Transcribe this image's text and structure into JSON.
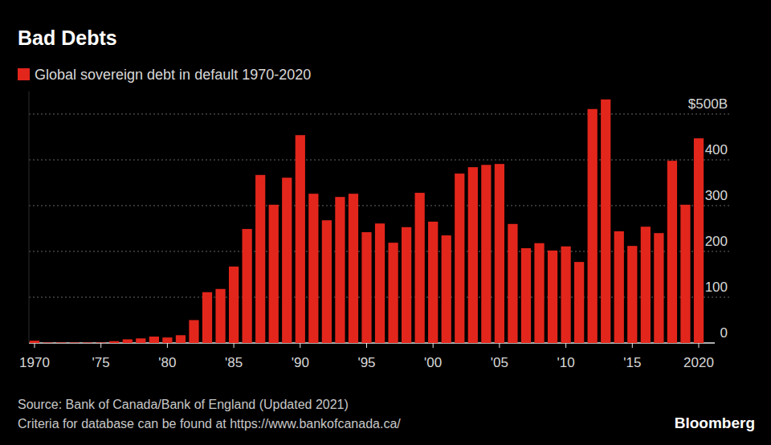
{
  "chart_data": {
    "type": "bar",
    "title": "Bad Debts",
    "categories": [
      "1970",
      null,
      null,
      null,
      null,
      "'75",
      null,
      null,
      null,
      null,
      "'80",
      null,
      null,
      null,
      null,
      "'85",
      null,
      null,
      null,
      null,
      "'90",
      null,
      null,
      null,
      null,
      "'95",
      null,
      null,
      null,
      null,
      "'00",
      null,
      null,
      null,
      null,
      "'05",
      null,
      null,
      null,
      null,
      "'10",
      null,
      null,
      null,
      null,
      "'15",
      null,
      null,
      null,
      null,
      "2020"
    ],
    "series": [
      {
        "name": "Global sovereign debt in default 1970-2020",
        "color": "#e3261c",
        "values": [
          5,
          1,
          1,
          1,
          1,
          1,
          4,
          8,
          10,
          14,
          12,
          17,
          50,
          111,
          118,
          167,
          249,
          367,
          302,
          361,
          454,
          326,
          268,
          319,
          326,
          242,
          261,
          219,
          253,
          328,
          265,
          235,
          370,
          384,
          389,
          391,
          260,
          207,
          218,
          202,
          211,
          177,
          511,
          532,
          244,
          212,
          254,
          240,
          398,
          302,
          447
        ]
      }
    ],
    "ylim": [
      0,
      550
    ],
    "yticks": [
      0,
      100,
      200,
      300,
      400,
      {
        "value": 500,
        "label": "$500B"
      }
    ],
    "grid": true,
    "legend": "top-left",
    "notes": [
      "Source: Bank of Canada/Bank of England (Updated 2021)",
      "Criteria for database can be found at https://www.bankofcanada.ca/"
    ],
    "credit": "Bloomberg"
  }
}
